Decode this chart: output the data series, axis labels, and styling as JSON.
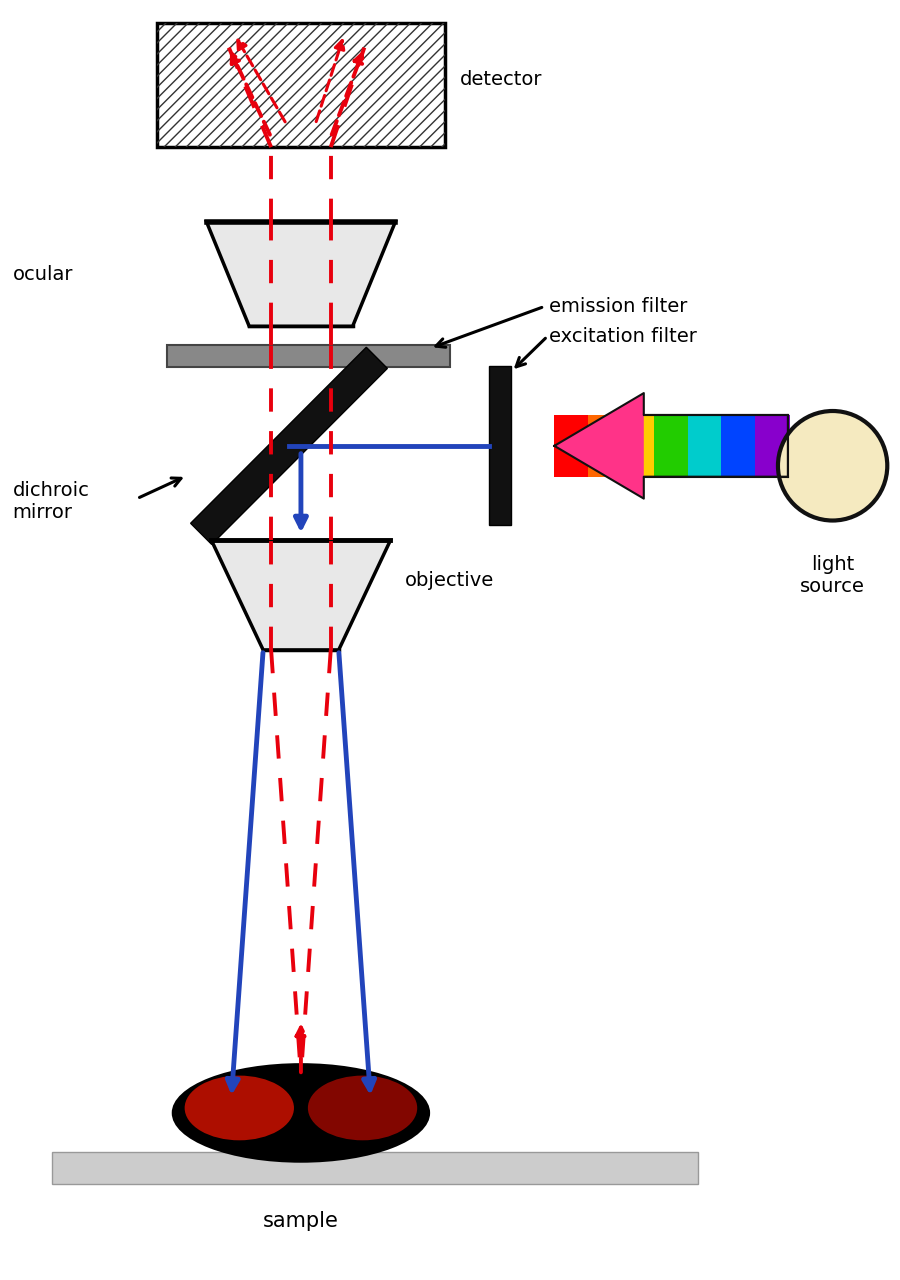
{
  "bg_color": "#ffffff",
  "line_color": "#000000",
  "red_dashed": "#e8000d",
  "blue_color": "#2244bb",
  "label_fontsize": 14,
  "labels": {
    "detector": "detector",
    "ocular": "ocular",
    "emission_filter": "emission filter",
    "excitation_filter": "excitation filter",
    "dichroic_mirror": "dichroic\nmirror",
    "objective": "objective",
    "light_source": "light\nsource",
    "sample": "sample"
  },
  "rainbow_colors_lr": [
    "#FF0000",
    "#FF7F00",
    "#FFFF00",
    "#00CC00",
    "#00BFFF",
    "#0000FF",
    "#8B00FF"
  ],
  "light_source_color": "#f5eac0",
  "light_source_edge": "#111111"
}
